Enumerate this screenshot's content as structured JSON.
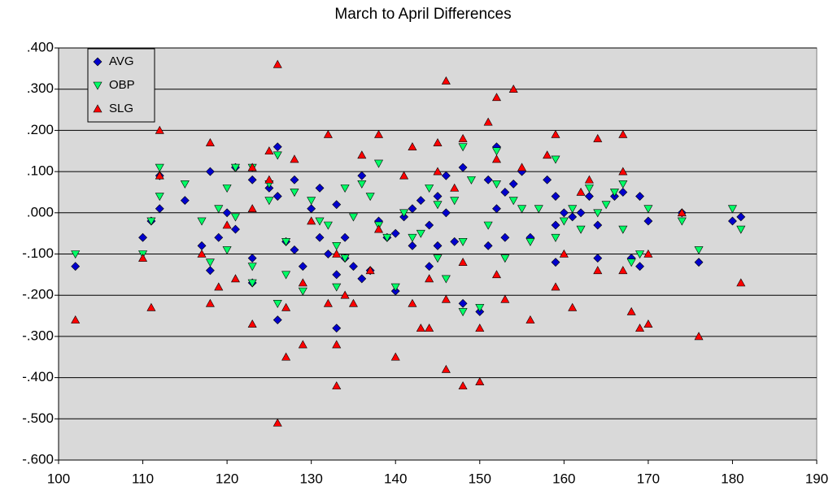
{
  "chart_data": {
    "type": "scatter",
    "title": "March to April Differences",
    "xlim": [
      100,
      190
    ],
    "xticks": [
      100,
      110,
      120,
      130,
      140,
      150,
      160,
      170,
      180,
      190
    ],
    "ylim": [
      -0.6,
      0.4
    ],
    "yticks": [
      {
        "value": -0.6,
        "label": "-.600"
      },
      {
        "value": -0.5,
        "label": "-.500"
      },
      {
        "value": -0.4,
        "label": "-.400"
      },
      {
        "value": -0.3,
        "label": "-.300"
      },
      {
        "value": -0.2,
        "label": "-.200"
      },
      {
        "value": -0.1,
        "label": "-.100"
      },
      {
        "value": 0,
        "label": ".000"
      },
      {
        "value": 0.1,
        "label": ".100"
      },
      {
        "value": 0.2,
        "label": ".200"
      },
      {
        "value": 0.3,
        "label": ".300"
      },
      {
        "value": 0.4,
        "label": ".400"
      }
    ],
    "grid": true,
    "legend": "top-left",
    "series": [
      {
        "name": "AVG",
        "color": "#0000cc",
        "marker": "diamond",
        "x": [
          102,
          110,
          111,
          112,
          112,
          115,
          117,
          118,
          118,
          119,
          120,
          121,
          121,
          123,
          123,
          123,
          125,
          126,
          126,
          126,
          127,
          128,
          128,
          129,
          130,
          131,
          131,
          132,
          133,
          133,
          133,
          134,
          134,
          135,
          136,
          136,
          137,
          138,
          139,
          140,
          140,
          141,
          142,
          142,
          143,
          144,
          144,
          145,
          145,
          146,
          146,
          147,
          148,
          148,
          150,
          151,
          151,
          152,
          152,
          153,
          153,
          154,
          155,
          156,
          158,
          159,
          159,
          159,
          160,
          161,
          162,
          163,
          164,
          164,
          166,
          167,
          168,
          169,
          169,
          170,
          174,
          176,
          180,
          181
        ],
        "values": [
          -0.13,
          -0.06,
          -0.02,
          0.01,
          0.09,
          0.03,
          -0.08,
          0.1,
          -0.14,
          -0.06,
          0.0,
          0.11,
          -0.04,
          -0.11,
          -0.17,
          0.08,
          0.06,
          0.16,
          0.04,
          -0.26,
          -0.07,
          0.08,
          -0.09,
          -0.13,
          0.01,
          0.06,
          -0.06,
          -0.1,
          -0.28,
          -0.15,
          0.02,
          -0.06,
          -0.11,
          -0.13,
          0.09,
          -0.16,
          -0.14,
          -0.02,
          -0.06,
          -0.19,
          -0.05,
          -0.01,
          0.01,
          -0.08,
          0.03,
          -0.13,
          -0.03,
          0.04,
          -0.08,
          0.09,
          0.0,
          -0.07,
          0.11,
          -0.22,
          -0.24,
          0.08,
          -0.08,
          0.16,
          0.01,
          0.05,
          -0.06,
          0.07,
          0.1,
          -0.06,
          0.08,
          0.04,
          -0.12,
          -0.03,
          0.0,
          -0.01,
          0.0,
          0.04,
          -0.11,
          -0.03,
          0.04,
          0.05,
          -0.11,
          -0.13,
          0.04,
          -0.02,
          0.0,
          -0.12,
          -0.02,
          -0.01
        ]
      },
      {
        "name": "OBP",
        "color": "#00ff66",
        "marker": "triangle-down",
        "x": [
          102,
          110,
          111,
          112,
          112,
          115,
          117,
          118,
          119,
          120,
          120,
          121,
          121,
          123,
          123,
          123,
          125,
          125,
          126,
          126,
          127,
          127,
          128,
          129,
          130,
          131,
          132,
          133,
          133,
          134,
          134,
          135,
          136,
          137,
          138,
          138,
          139,
          140,
          141,
          142,
          143,
          144,
          145,
          145,
          146,
          147,
          148,
          148,
          148,
          149,
          150,
          151,
          152,
          152,
          153,
          154,
          155,
          156,
          157,
          159,
          159,
          160,
          161,
          162,
          163,
          164,
          165,
          166,
          167,
          167,
          168,
          169,
          170,
          174,
          176,
          180,
          181
        ],
        "values": [
          -0.1,
          -0.1,
          -0.02,
          0.11,
          0.04,
          0.07,
          -0.02,
          -0.12,
          0.01,
          0.06,
          -0.09,
          0.11,
          -0.01,
          -0.13,
          -0.17,
          0.11,
          0.03,
          0.07,
          0.14,
          -0.22,
          -0.15,
          -0.07,
          0.05,
          -0.19,
          0.03,
          -0.02,
          -0.03,
          -0.18,
          -0.08,
          0.06,
          -0.11,
          -0.01,
          0.07,
          0.04,
          0.12,
          -0.03,
          -0.06,
          -0.18,
          0.0,
          -0.06,
          -0.05,
          0.06,
          -0.11,
          0.02,
          -0.16,
          0.03,
          0.16,
          -0.24,
          -0.07,
          0.08,
          -0.23,
          -0.03,
          0.07,
          0.15,
          -0.11,
          0.03,
          0.01,
          -0.07,
          0.01,
          0.13,
          -0.06,
          -0.02,
          0.01,
          -0.04,
          0.06,
          0.0,
          0.02,
          0.05,
          0.07,
          -0.04,
          -0.12,
          -0.1,
          0.01,
          -0.02,
          -0.09,
          0.01,
          -0.04
        ]
      },
      {
        "name": "SLG",
        "color": "#ff0000",
        "marker": "triangle-up",
        "x": [
          102,
          110,
          111,
          112,
          112,
          117,
          118,
          118,
          119,
          120,
          121,
          123,
          123,
          123,
          125,
          125,
          126,
          126,
          127,
          127,
          128,
          129,
          129,
          130,
          132,
          132,
          133,
          133,
          133,
          134,
          135,
          136,
          137,
          138,
          138,
          140,
          141,
          142,
          142,
          143,
          144,
          144,
          145,
          145,
          146,
          146,
          146,
          147,
          148,
          148,
          148,
          150,
          150,
          151,
          152,
          152,
          152,
          153,
          154,
          155,
          156,
          158,
          159,
          159,
          160,
          161,
          162,
          163,
          164,
          164,
          167,
          167,
          167,
          168,
          169,
          170,
          170,
          174,
          176,
          181
        ],
        "values": [
          -0.26,
          -0.11,
          -0.23,
          0.2,
          0.09,
          -0.1,
          0.17,
          -0.22,
          -0.18,
          -0.03,
          -0.16,
          0.11,
          -0.27,
          0.01,
          0.15,
          0.08,
          0.36,
          -0.51,
          -0.35,
          -0.23,
          0.13,
          -0.32,
          -0.17,
          -0.02,
          0.19,
          -0.22,
          -0.42,
          -0.32,
          -0.1,
          -0.2,
          -0.22,
          0.14,
          -0.14,
          0.19,
          -0.04,
          -0.35,
          0.09,
          0.16,
          -0.22,
          -0.28,
          -0.28,
          -0.16,
          0.17,
          0.1,
          0.32,
          -0.38,
          -0.21,
          0.06,
          0.18,
          -0.42,
          -0.12,
          -0.41,
          -0.28,
          0.22,
          0.28,
          0.13,
          -0.15,
          -0.21,
          0.3,
          0.11,
          -0.26,
          0.14,
          0.19,
          -0.18,
          -0.1,
          -0.23,
          0.05,
          0.08,
          0.18,
          -0.14,
          0.19,
          0.1,
          -0.14,
          -0.24,
          -0.28,
          -0.27,
          -0.1,
          0.0,
          -0.3,
          -0.17
        ]
      }
    ]
  }
}
